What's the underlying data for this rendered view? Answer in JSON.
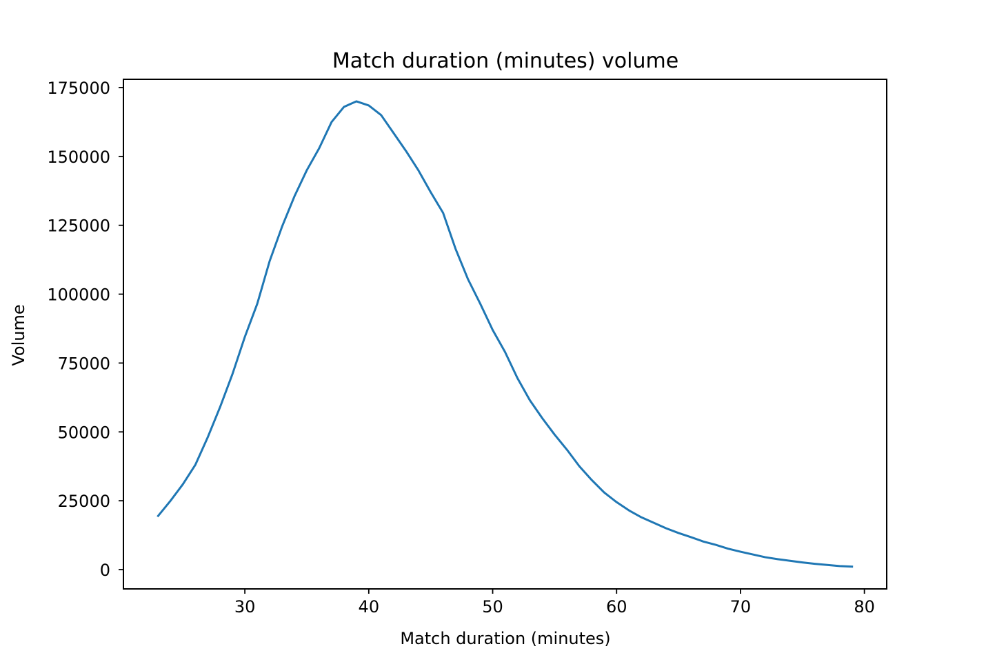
{
  "chart_data": {
    "type": "line",
    "title": "Match duration (minutes) volume",
    "xlabel": "Match duration (minutes)",
    "ylabel": "Volume",
    "xlim": [
      20.2,
      81.8
    ],
    "ylim": [
      -7000,
      178000
    ],
    "x_ticks": [
      30,
      40,
      50,
      60,
      70,
      80
    ],
    "y_ticks": [
      0,
      25000,
      50000,
      75000,
      100000,
      125000,
      150000,
      175000
    ],
    "grid": false,
    "legend": "none",
    "series": [
      {
        "color": "#1f77b4",
        "x": [
          23,
          24,
          25,
          26,
          27,
          28,
          29,
          30,
          31,
          32,
          33,
          34,
          35,
          36,
          37,
          38,
          39,
          40,
          41,
          42,
          43,
          44,
          45,
          46,
          47,
          48,
          49,
          50,
          51,
          52,
          53,
          54,
          55,
          56,
          57,
          58,
          59,
          60,
          61,
          62,
          63,
          64,
          65,
          66,
          67,
          68,
          69,
          70,
          71,
          72,
          73,
          74,
          75,
          76,
          77,
          78,
          79
        ],
        "values": [
          19500,
          25000,
          31000,
          38000,
          48000,
          59000,
          71000,
          84500,
          96500,
          112000,
          124500,
          135500,
          145000,
          153000,
          162500,
          168000,
          170000,
          168500,
          165000,
          158500,
          152000,
          145000,
          137000,
          129500,
          116500,
          105500,
          96500,
          87000,
          79000,
          69500,
          61500,
          55000,
          49000,
          43500,
          37500,
          32500,
          28000,
          24500,
          21500,
          19000,
          17000,
          15000,
          13300,
          11800,
          10200,
          9000,
          7600,
          6500,
          5500,
          4500,
          3800,
          3200,
          2600,
          2100,
          1700,
          1300,
          1100
        ]
      }
    ]
  }
}
